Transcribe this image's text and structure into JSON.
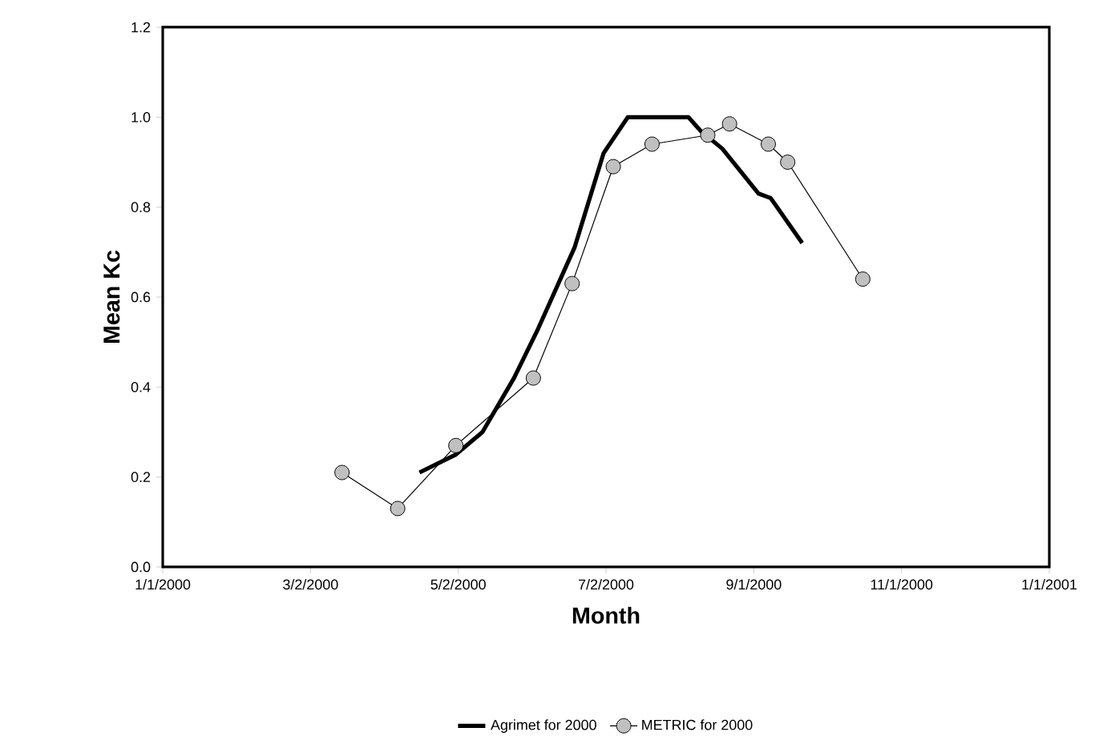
{
  "chart_data": {
    "type": "line",
    "xlabel": "Month",
    "ylabel": "Mean Kc",
    "xlim": [
      "2000-01-01",
      "2001-01-01"
    ],
    "xticks": [
      {
        "value": "2000-01-01",
        "label": "1/1/2000"
      },
      {
        "value": "2000-03-02",
        "label": "3/2/2000"
      },
      {
        "value": "2000-05-02",
        "label": "5/2/2000"
      },
      {
        "value": "2000-07-02",
        "label": "7/2/2000"
      },
      {
        "value": "2000-09-01",
        "label": "9/1/2000"
      },
      {
        "value": "2000-11-01",
        "label": "11/1/2000"
      },
      {
        "value": "2001-01-01",
        "label": "1/1/2001"
      }
    ],
    "ylim": [
      0,
      1.2
    ],
    "yticks": [
      {
        "value": 0,
        "label": "0.0"
      },
      0.2,
      0.4,
      0.6,
      0.8,
      {
        "value": 1,
        "label": "1.0"
      },
      1.2
    ],
    "legend": "bottom",
    "grid": false,
    "series": [
      {
        "name": "Agrimet for 2000",
        "color": "#000000",
        "marker": "none",
        "x": [
          "2000-04-16",
          "2000-05-01",
          "2000-05-12",
          "2000-05-25",
          "2000-06-04",
          "2000-06-19",
          "2000-07-01",
          "2000-07-11",
          "2000-08-05",
          "2000-08-10",
          "2000-08-19",
          "2000-09-03",
          "2000-09-08",
          "2000-09-21"
        ],
        "values": [
          0.21,
          0.25,
          0.3,
          0.42,
          0.53,
          0.71,
          0.92,
          1.0,
          1.0,
          0.97,
          0.93,
          0.83,
          0.82,
          0.72
        ]
      },
      {
        "name": "METRIC for 2000",
        "color": "#c0c0c0",
        "marker": "circle",
        "x": [
          "2000-03-15",
          "2000-04-07",
          "2000-05-01",
          "2000-06-02",
          "2000-06-18",
          "2000-07-05",
          "2000-07-21",
          "2000-08-13",
          "2000-08-22",
          "2000-09-07",
          "2000-09-15",
          "2000-10-16"
        ],
        "values": [
          0.21,
          0.13,
          0.27,
          0.42,
          0.63,
          0.89,
          0.94,
          0.96,
          0.985,
          0.94,
          0.9,
          0.64
        ]
      }
    ]
  }
}
